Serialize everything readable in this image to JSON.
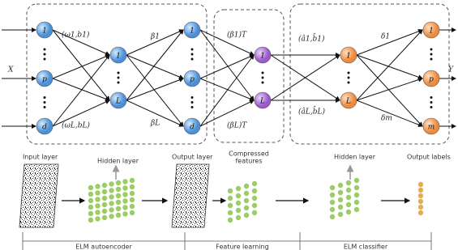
{
  "network": {
    "input_nodes": [
      "1",
      "p",
      "d"
    ],
    "hidden_nodes": [
      "1",
      "L"
    ],
    "output_nodes": [
      "1",
      "p",
      "d"
    ],
    "compressed_nodes": [
      "1",
      "L"
    ],
    "classifier_hidden_nodes": [
      "1",
      "L"
    ],
    "label_nodes": [
      "1",
      "p",
      "m"
    ],
    "input_symbol": "X",
    "output_symbol": "Y",
    "weights": {
      "encoder_first": "(ω1,b1)",
      "encoder_last": "(ωL,bL)",
      "beta_first": "β1",
      "beta_last": "βL",
      "beta_t_first": "(β1)T",
      "beta_t_last": "(βL)T",
      "classifier_first": "(â1,b̂1)",
      "classifier_last": "(âL,b̂L)",
      "delta_first": "δ1",
      "delta_last": "δm"
    }
  },
  "stages": {
    "input_layer": "Input layer",
    "hidden_layer": "Hidden layer",
    "output_layer": "Output layer",
    "compressed_features": [
      "Compressed",
      "features"
    ],
    "classifier_hidden_layer": "Hidden layer",
    "output_labels": "Output labels"
  },
  "sections": [
    "ELM autoencoder",
    "Feature learning",
    "ELM classifier"
  ]
}
